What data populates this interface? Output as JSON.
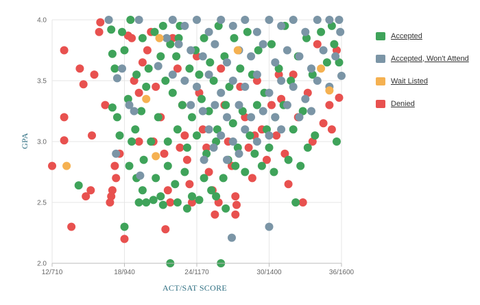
{
  "chart_data": {
    "type": "scatter",
    "xlabel": "ACT/SAT SCORE",
    "ylabel": "GPA",
    "xlim": [
      12,
      36
    ],
    "ylim": [
      2.0,
      4.0
    ],
    "x_ticks": [
      {
        "value": 12,
        "label": "12/710"
      },
      {
        "value": 18,
        "label": "18/940"
      },
      {
        "value": 24,
        "label": "24/1170"
      },
      {
        "value": 30,
        "label": "30/1400"
      },
      {
        "value": 36,
        "label": "36/1600"
      }
    ],
    "y_ticks": [
      {
        "value": 2.0,
        "label": "2.0"
      },
      {
        "value": 2.5,
        "label": "2.5"
      },
      {
        "value": 3.0,
        "label": "3.0"
      },
      {
        "value": 3.5,
        "label": "3.5"
      },
      {
        "value": 4.0,
        "label": "4.0"
      }
    ],
    "grid": true,
    "legend_position": "right",
    "series": [
      {
        "name": "Accepted",
        "color": "#3fa35a",
        "points": [
          [
            18.5,
            4.0
          ],
          [
            17.8,
            3.9
          ],
          [
            19.5,
            3.85
          ],
          [
            20.5,
            3.9
          ],
          [
            21.2,
            3.95
          ],
          [
            21.8,
            3.8
          ],
          [
            22.3,
            3.7
          ],
          [
            22.6,
            3.95
          ],
          [
            23.4,
            3.6
          ],
          [
            23.9,
            3.75
          ],
          [
            24.2,
            3.55
          ],
          [
            24.6,
            3.85
          ],
          [
            25.1,
            3.65
          ],
          [
            25.4,
            3.5
          ],
          [
            25.8,
            3.95
          ],
          [
            26.3,
            3.7
          ],
          [
            26.7,
            3.45
          ],
          [
            27.1,
            3.85
          ],
          [
            27.6,
            3.6
          ],
          [
            28.2,
            3.9
          ],
          [
            28.6,
            3.55
          ],
          [
            29.1,
            3.75
          ],
          [
            29.6,
            3.4
          ],
          [
            30.2,
            3.8
          ],
          [
            30.8,
            3.6
          ],
          [
            31.3,
            3.95
          ],
          [
            31.8,
            3.5
          ],
          [
            32.4,
            3.7
          ],
          [
            33.1,
            3.85
          ],
          [
            33.6,
            3.55
          ],
          [
            34.3,
            3.9
          ],
          [
            34.8,
            3.65
          ],
          [
            35.4,
            3.8
          ],
          [
            35.8,
            3.65
          ],
          [
            35.2,
            3.95
          ],
          [
            21.4,
            3.5
          ],
          [
            22.0,
            3.4
          ],
          [
            22.8,
            3.3
          ],
          [
            23.6,
            3.2
          ],
          [
            24.4,
            3.35
          ],
          [
            25.0,
            3.25
          ],
          [
            25.7,
            3.1
          ],
          [
            26.4,
            3.3
          ],
          [
            27.0,
            3.15
          ],
          [
            27.8,
            3.25
          ],
          [
            28.4,
            3.05
          ],
          [
            29.0,
            3.3
          ],
          [
            29.8,
            3.1
          ],
          [
            30.5,
            3.2
          ],
          [
            31.2,
            3.3
          ],
          [
            32.0,
            3.1
          ],
          [
            32.8,
            3.25
          ],
          [
            33.8,
            3.05
          ],
          [
            35.6,
            3.0
          ],
          [
            20.8,
            3.2
          ],
          [
            21.6,
            3.0
          ],
          [
            22.4,
            3.1
          ],
          [
            23.2,
            2.95
          ],
          [
            24.0,
            3.05
          ],
          [
            24.8,
            2.9
          ],
          [
            25.6,
            3.0
          ],
          [
            26.6,
            2.85
          ],
          [
            27.4,
            2.95
          ],
          [
            28.8,
            2.9
          ],
          [
            30.0,
            2.95
          ],
          [
            31.6,
            2.85
          ],
          [
            33.2,
            2.95
          ],
          [
            18.3,
            3.35
          ],
          [
            18.9,
            3.1
          ],
          [
            19.4,
            3.25
          ],
          [
            17.6,
            3.05
          ],
          [
            17.4,
            3.2
          ],
          [
            17.2,
            3.6
          ],
          [
            17.0,
            3.72
          ],
          [
            16.9,
            3.92
          ],
          [
            18.0,
            3.75
          ],
          [
            19.0,
            3.55
          ],
          [
            19.8,
            3.45
          ],
          [
            20.2,
            3.0
          ],
          [
            19.6,
            2.85
          ],
          [
            18.4,
            2.8
          ],
          [
            19.0,
            2.7
          ],
          [
            19.5,
            2.6
          ],
          [
            20.6,
            2.7
          ],
          [
            21.0,
            2.55
          ],
          [
            21.6,
            2.8
          ],
          [
            22.2,
            2.65
          ],
          [
            23.0,
            2.75
          ],
          [
            23.6,
            2.55
          ],
          [
            24.6,
            2.7
          ],
          [
            25.2,
            2.6
          ],
          [
            26.2,
            2.7
          ],
          [
            27.2,
            2.8
          ],
          [
            28.0,
            2.75
          ],
          [
            29.4,
            2.8
          ],
          [
            30.4,
            2.75
          ],
          [
            32.6,
            2.8
          ],
          [
            32.2,
            2.5
          ],
          [
            19.2,
            2.5
          ],
          [
            19.8,
            2.5
          ],
          [
            20.4,
            2.52
          ],
          [
            21.2,
            2.48
          ],
          [
            22.4,
            2.5
          ],
          [
            23.2,
            2.45
          ],
          [
            24.2,
            2.52
          ],
          [
            25.6,
            2.55
          ],
          [
            26.4,
            2.45
          ],
          [
            18.0,
            2.3
          ],
          [
            14.2,
            2.64
          ],
          [
            17.0,
            3.28
          ],
          [
            18.6,
            3.0
          ],
          [
            21.8,
            2.0
          ],
          [
            26.0,
            2.0
          ],
          [
            21.0,
            3.7
          ],
          [
            22.5,
            3.85
          ],
          [
            20.0,
            3.6
          ]
        ]
      },
      {
        "name": "Accepted, Won't Attend",
        "color": "#7b95a6",
        "points": [
          [
            16.7,
            4.0
          ],
          [
            19.2,
            4.0
          ],
          [
            22.0,
            4.0
          ],
          [
            23.0,
            3.95
          ],
          [
            24.0,
            4.0
          ],
          [
            25.0,
            3.9
          ],
          [
            26.0,
            4.0
          ],
          [
            27.0,
            3.95
          ],
          [
            28.0,
            4.0
          ],
          [
            29.0,
            3.9
          ],
          [
            30.0,
            4.0
          ],
          [
            31.0,
            3.95
          ],
          [
            32.0,
            4.0
          ],
          [
            33.0,
            3.9
          ],
          [
            34.0,
            4.0
          ],
          [
            35.0,
            4.0
          ],
          [
            35.8,
            4.0
          ],
          [
            35.9,
            3.9
          ],
          [
            22.5,
            3.8
          ],
          [
            23.5,
            3.75
          ],
          [
            24.5,
            3.7
          ],
          [
            25.5,
            3.8
          ],
          [
            26.5,
            3.65
          ],
          [
            27.5,
            3.75
          ],
          [
            28.5,
            3.7
          ],
          [
            29.5,
            3.8
          ],
          [
            30.5,
            3.65
          ],
          [
            31.5,
            3.75
          ],
          [
            32.5,
            3.7
          ],
          [
            33.5,
            3.6
          ],
          [
            34.5,
            3.75
          ],
          [
            35.5,
            3.7
          ],
          [
            22.0,
            3.55
          ],
          [
            23.0,
            3.5
          ],
          [
            24.0,
            3.45
          ],
          [
            25.0,
            3.55
          ],
          [
            26.0,
            3.4
          ],
          [
            27.0,
            3.5
          ],
          [
            28.0,
            3.45
          ],
          [
            29.0,
            3.55
          ],
          [
            30.0,
            3.4
          ],
          [
            31.0,
            3.5
          ],
          [
            32.0,
            3.45
          ],
          [
            33.0,
            3.35
          ],
          [
            34.0,
            3.5
          ],
          [
            35.0,
            3.45
          ],
          [
            23.5,
            3.3
          ],
          [
            24.5,
            3.25
          ],
          [
            25.5,
            3.3
          ],
          [
            26.5,
            3.2
          ],
          [
            27.5,
            3.3
          ],
          [
            28.5,
            3.2
          ],
          [
            29.5,
            3.25
          ],
          [
            30.5,
            3.2
          ],
          [
            31.5,
            3.3
          ],
          [
            32.5,
            3.2
          ],
          [
            33.5,
            3.25
          ],
          [
            25.0,
            3.1
          ],
          [
            26.0,
            3.05
          ],
          [
            27.0,
            3.0
          ],
          [
            28.0,
            3.1
          ],
          [
            29.0,
            3.0
          ],
          [
            30.0,
            3.05
          ],
          [
            31.0,
            3.1
          ],
          [
            26.5,
            2.85
          ],
          [
            27.5,
            2.9
          ],
          [
            17.4,
            3.52
          ],
          [
            17.8,
            3.6
          ],
          [
            18.4,
            3.3
          ],
          [
            18.8,
            3.25
          ],
          [
            17.3,
            2.9
          ],
          [
            19.3,
            2.72
          ],
          [
            20.8,
            3.62
          ],
          [
            21.5,
            3.85
          ],
          [
            36.0,
            3.54
          ],
          [
            30.0,
            2.3
          ],
          [
            26.9,
            2.21
          ],
          [
            25.4,
            2.95
          ],
          [
            24.6,
            2.85
          ]
        ]
      },
      {
        "name": "Wait Listed",
        "color": "#f5b151",
        "points": [
          [
            13.2,
            2.8
          ],
          [
            20.9,
            3.85
          ],
          [
            20.6,
            2.88
          ],
          [
            35.0,
            3.42
          ],
          [
            34.3,
            3.6
          ],
          [
            27.4,
            3.75
          ],
          [
            19.8,
            3.35
          ]
        ]
      },
      {
        "name": "Denied",
        "color": "#e8514f",
        "points": [
          [
            12.0,
            2.8
          ],
          [
            13.0,
            3.75
          ],
          [
            13.0,
            3.2
          ],
          [
            13.0,
            3.01
          ],
          [
            13.6,
            2.3
          ],
          [
            14.3,
            3.6
          ],
          [
            14.6,
            3.47
          ],
          [
            14.8,
            2.55
          ],
          [
            15.2,
            2.6
          ],
          [
            15.5,
            3.55
          ],
          [
            16.0,
            3.98
          ],
          [
            16.8,
            2.5
          ],
          [
            16.9,
            2.55
          ],
          [
            17.0,
            2.6
          ],
          [
            17.3,
            2.7
          ],
          [
            17.2,
            2.8
          ],
          [
            17.6,
            2.9
          ],
          [
            18.0,
            2.2
          ],
          [
            18.3,
            3.87
          ],
          [
            18.6,
            3.85
          ],
          [
            18.8,
            3.5
          ],
          [
            19.2,
            3.0
          ],
          [
            19.5,
            3.65
          ],
          [
            19.9,
            3.75
          ],
          [
            20.2,
            3.9
          ],
          [
            20.6,
            3.45
          ],
          [
            21.0,
            3.2
          ],
          [
            21.3,
            2.9
          ],
          [
            21.6,
            2.6
          ],
          [
            21.8,
            2.5
          ],
          [
            21.4,
            2.28
          ],
          [
            22.0,
            3.85
          ],
          [
            22.4,
            3.6
          ],
          [
            22.8,
            3.3
          ],
          [
            23.0,
            3.05
          ],
          [
            23.2,
            2.85
          ],
          [
            23.4,
            2.65
          ],
          [
            23.6,
            2.5
          ],
          [
            24.0,
            3.7
          ],
          [
            24.2,
            3.4
          ],
          [
            24.5,
            3.1
          ],
          [
            24.8,
            2.95
          ],
          [
            25.0,
            2.75
          ],
          [
            25.3,
            2.6
          ],
          [
            25.5,
            2.4
          ],
          [
            25.8,
            2.5
          ],
          [
            26.0,
            3.6
          ],
          [
            26.3,
            3.3
          ],
          [
            26.6,
            3.0
          ],
          [
            26.9,
            2.8
          ],
          [
            27.2,
            2.55
          ],
          [
            27.3,
            2.48
          ],
          [
            27.2,
            2.4
          ],
          [
            27.6,
            3.45
          ],
          [
            28.0,
            3.2
          ],
          [
            28.3,
            2.95
          ],
          [
            28.6,
            2.7
          ],
          [
            29.0,
            3.5
          ],
          [
            29.4,
            3.1
          ],
          [
            29.8,
            2.85
          ],
          [
            30.2,
            3.3
          ],
          [
            30.6,
            3.05
          ],
          [
            31.0,
            3.35
          ],
          [
            31.3,
            2.9
          ],
          [
            31.6,
            2.65
          ],
          [
            32.0,
            3.55
          ],
          [
            32.4,
            3.2
          ],
          [
            32.8,
            2.5
          ],
          [
            33.2,
            3.4
          ],
          [
            33.6,
            3.0
          ],
          [
            34.0,
            3.8
          ],
          [
            34.5,
            3.15
          ],
          [
            35.0,
            3.3
          ],
          [
            35.2,
            3.1
          ],
          [
            35.6,
            3.75
          ],
          [
            35.8,
            3.36
          ],
          [
            15.3,
            3.05
          ],
          [
            16.4,
            3.3
          ],
          [
            15.9,
            3.9
          ],
          [
            20.4,
            3.0
          ],
          [
            19.2,
            3.4
          ],
          [
            22.6,
            2.95
          ],
          [
            28.8,
            3.05
          ],
          [
            30.8,
            3.55
          ]
        ]
      }
    ]
  }
}
